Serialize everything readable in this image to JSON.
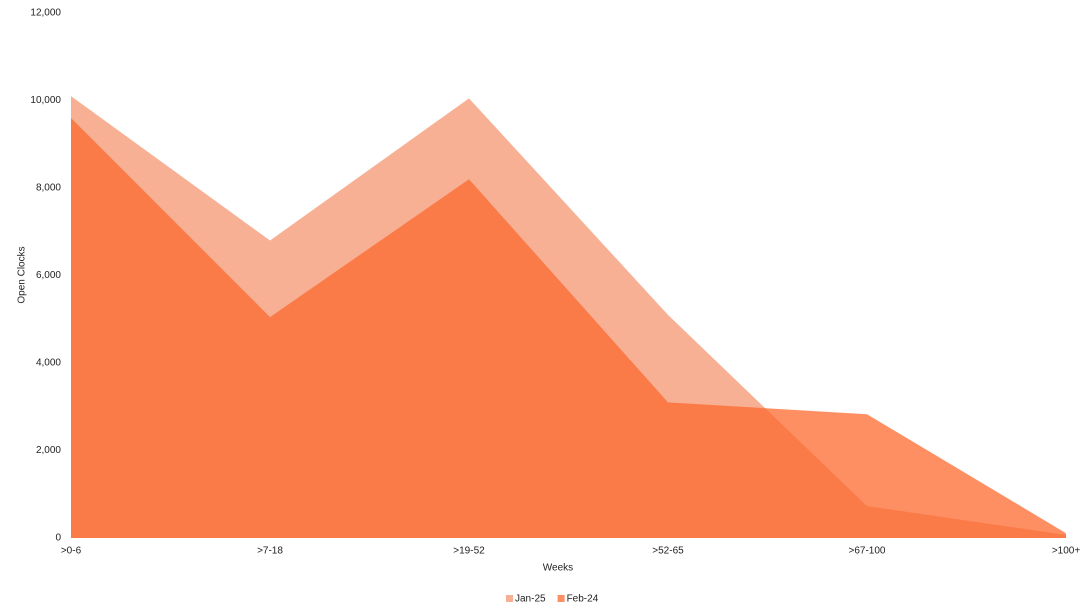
{
  "chart_data": {
    "type": "area",
    "x_label": "Weeks",
    "y_label": "Open Clocks",
    "categories": [
      ">0-6",
      ">7-18",
      ">19-52",
      ">52-65",
      ">67-100",
      ">100+"
    ],
    "series": [
      {
        "name": "Jan-25",
        "color": "#f49570",
        "values": [
          10100,
          6800,
          10050,
          5100,
          730,
          70
        ]
      },
      {
        "name": "Feb-24",
        "color": "#fc692f",
        "values": [
          9600,
          5050,
          8200,
          3100,
          2830,
          110
        ]
      }
    ],
    "ylim": [
      0,
      12000
    ],
    "yticks": [
      0,
      {
        "value": 2000,
        "label": "2,000"
      },
      {
        "value": 4000,
        "label": "4,000"
      },
      {
        "value": 6000,
        "label": "6,000"
      },
      {
        "value": 8000,
        "label": "8,000"
      },
      {
        "value": 10000,
        "label": "10,000"
      },
      {
        "value": 12000,
        "label": "12,000"
      }
    ],
    "grid": false,
    "legend": "bottom"
  }
}
